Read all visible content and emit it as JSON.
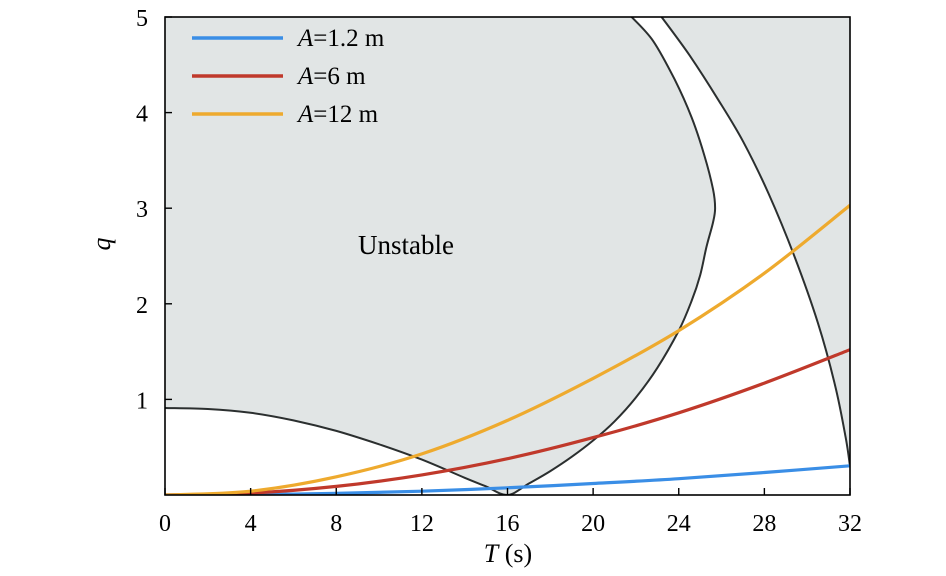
{
  "chart_data": {
    "type": "line",
    "xlabel_var": "T",
    "xlabel_unit": " (s)",
    "ylabel": "q",
    "xlim": [
      0,
      32
    ],
    "ylim": [
      0,
      5
    ],
    "x_ticks": [
      0,
      4,
      8,
      12,
      16,
      20,
      24,
      28,
      32
    ],
    "y_ticks": [
      1,
      2,
      3,
      4,
      5
    ],
    "legend_position": "top-left",
    "annotation": "Unstable",
    "unstable_fill": "#e1e5e5",
    "boundary_color": "#2b2f2f",
    "boundaries": [
      {
        "x": [
          0,
          2,
          4,
          6,
          8,
          10,
          12,
          14,
          15,
          16,
          17,
          18,
          19,
          20,
          21,
          22,
          23,
          24,
          24.6,
          25,
          25.3,
          25.6,
          25.7,
          25.6,
          25.2,
          24.6,
          23.8,
          22.8,
          21.8
        ],
        "y": [
          0.91,
          0.9,
          0.86,
          0.78,
          0.67,
          0.53,
          0.37,
          0.18,
          0.09,
          0.0,
          0.12,
          0.25,
          0.4,
          0.57,
          0.77,
          1.02,
          1.33,
          1.72,
          2.03,
          2.3,
          2.6,
          2.85,
          3.0,
          3.2,
          3.55,
          3.95,
          4.35,
          4.75,
          5.0
        ]
      },
      {
        "x": [
          23.2,
          24.5,
          25.8,
          27.0,
          28.2,
          29.4,
          30.5,
          31.3,
          31.8,
          32.0
        ],
        "y": [
          5.0,
          4.6,
          4.15,
          3.7,
          3.15,
          2.5,
          1.8,
          1.15,
          0.6,
          0.3
        ]
      }
    ],
    "series": [
      {
        "name_var": "A",
        "name_value": "=1.2 m",
        "color": "#3a8ee6",
        "x": [
          0,
          4,
          8,
          12,
          16,
          20,
          24,
          28,
          32
        ],
        "y": [
          0.0,
          0.004,
          0.017,
          0.04,
          0.075,
          0.12,
          0.17,
          0.235,
          0.305
        ]
      },
      {
        "name_var": "A",
        "name_value": "=6 m",
        "color": "#c0392b",
        "x": [
          0,
          4,
          8,
          12,
          16,
          20,
          24,
          28,
          32
        ],
        "y": [
          0.0,
          0.02,
          0.09,
          0.21,
          0.38,
          0.6,
          0.86,
          1.17,
          1.52
        ]
      },
      {
        "name_var": "A",
        "name_value": "=12 m",
        "color": "#eeaa2e",
        "x": [
          0,
          4,
          8,
          12,
          16,
          20,
          24,
          28,
          32
        ],
        "y": [
          0.0,
          0.04,
          0.19,
          0.43,
          0.78,
          1.22,
          1.72,
          2.32,
          3.03
        ]
      }
    ]
  }
}
